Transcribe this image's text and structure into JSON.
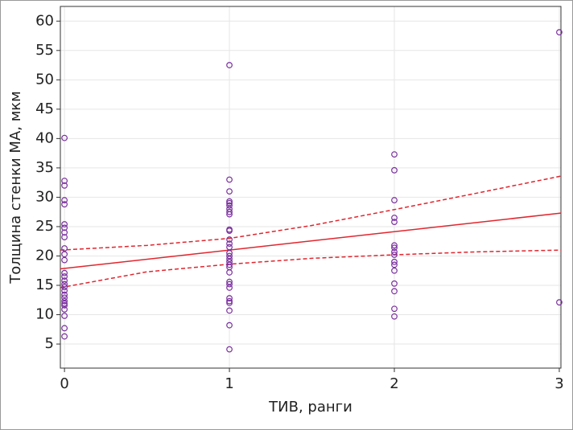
{
  "chart_data": {
    "type": "scatter",
    "xlabel": "ТИВ, ранги",
    "ylabel": "Толщина стенки МА, мкм",
    "xlim": [
      -0.025,
      3.01
    ],
    "ylim": [
      0.9,
      62.5
    ],
    "xticks": [
      0,
      1,
      2,
      3
    ],
    "yticks": [
      5,
      10,
      15,
      20,
      25,
      30,
      35,
      40,
      45,
      50,
      55,
      60
    ],
    "grid": true,
    "points": {
      "color": "#7a2f9e",
      "x": [
        0,
        0,
        0,
        0,
        0,
        0,
        0,
        0,
        0,
        0,
        0,
        0,
        0,
        0,
        0,
        0,
        0,
        0,
        0,
        0,
        0,
        0,
        0,
        0,
        0,
        0,
        0,
        1,
        1,
        1,
        1,
        1,
        1,
        1,
        1,
        1,
        1,
        1,
        1,
        1,
        1,
        1,
        1,
        1,
        1,
        1,
        1,
        1,
        1,
        1,
        1,
        1,
        1,
        1,
        1,
        1,
        1,
        2,
        2,
        2,
        2,
        2,
        2,
        2,
        2,
        2,
        2,
        2,
        2,
        2,
        2,
        2,
        2,
        3,
        3
      ],
      "y": [
        40.1,
        32.8,
        32,
        29.5,
        28.8,
        25.4,
        24.8,
        24,
        23.2,
        21.3,
        20.3,
        19.3,
        17.1,
        16.5,
        15.8,
        15.2,
        14.7,
        14.1,
        13.4,
        12.9,
        12.3,
        11.9,
        11.6,
        10.9,
        9.8,
        7.7,
        6.3,
        52.5,
        33,
        31,
        29.3,
        29,
        28.6,
        28,
        27.5,
        27.1,
        24.5,
        24.3,
        22.8,
        22.1,
        21.5,
        20.5,
        20,
        19.5,
        19,
        18.5,
        18.1,
        17.2,
        15.6,
        15.2,
        14.6,
        12.8,
        12.3,
        12,
        10.7,
        8.2,
        4.1,
        37.3,
        34.6,
        29.5,
        26.5,
        25.8,
        21.8,
        21.4,
        20.7,
        20.2,
        19,
        18.5,
        17.5,
        15.3,
        14,
        11,
        9.7,
        58.1,
        12.1
      ]
    },
    "lines": [
      {
        "color": "#e0262e",
        "dash": false,
        "x": [
          -0.025,
          3.01
        ],
        "y": [
          17.8,
          27.3
        ]
      },
      {
        "color": "#e0262e",
        "dash": true,
        "x": [
          -0.025,
          0.5,
          1,
          1.5,
          2,
          2.5,
          3.01
        ],
        "y": [
          21,
          21.8,
          23,
          25.2,
          27.9,
          30.7,
          33.6
        ]
      },
      {
        "color": "#e0262e",
        "dash": true,
        "x": [
          -0.025,
          0.5,
          1,
          1.5,
          2,
          2.5,
          3.01
        ],
        "y": [
          14.6,
          17.3,
          18.6,
          19.6,
          20.2,
          20.7,
          21
        ]
      }
    ]
  }
}
